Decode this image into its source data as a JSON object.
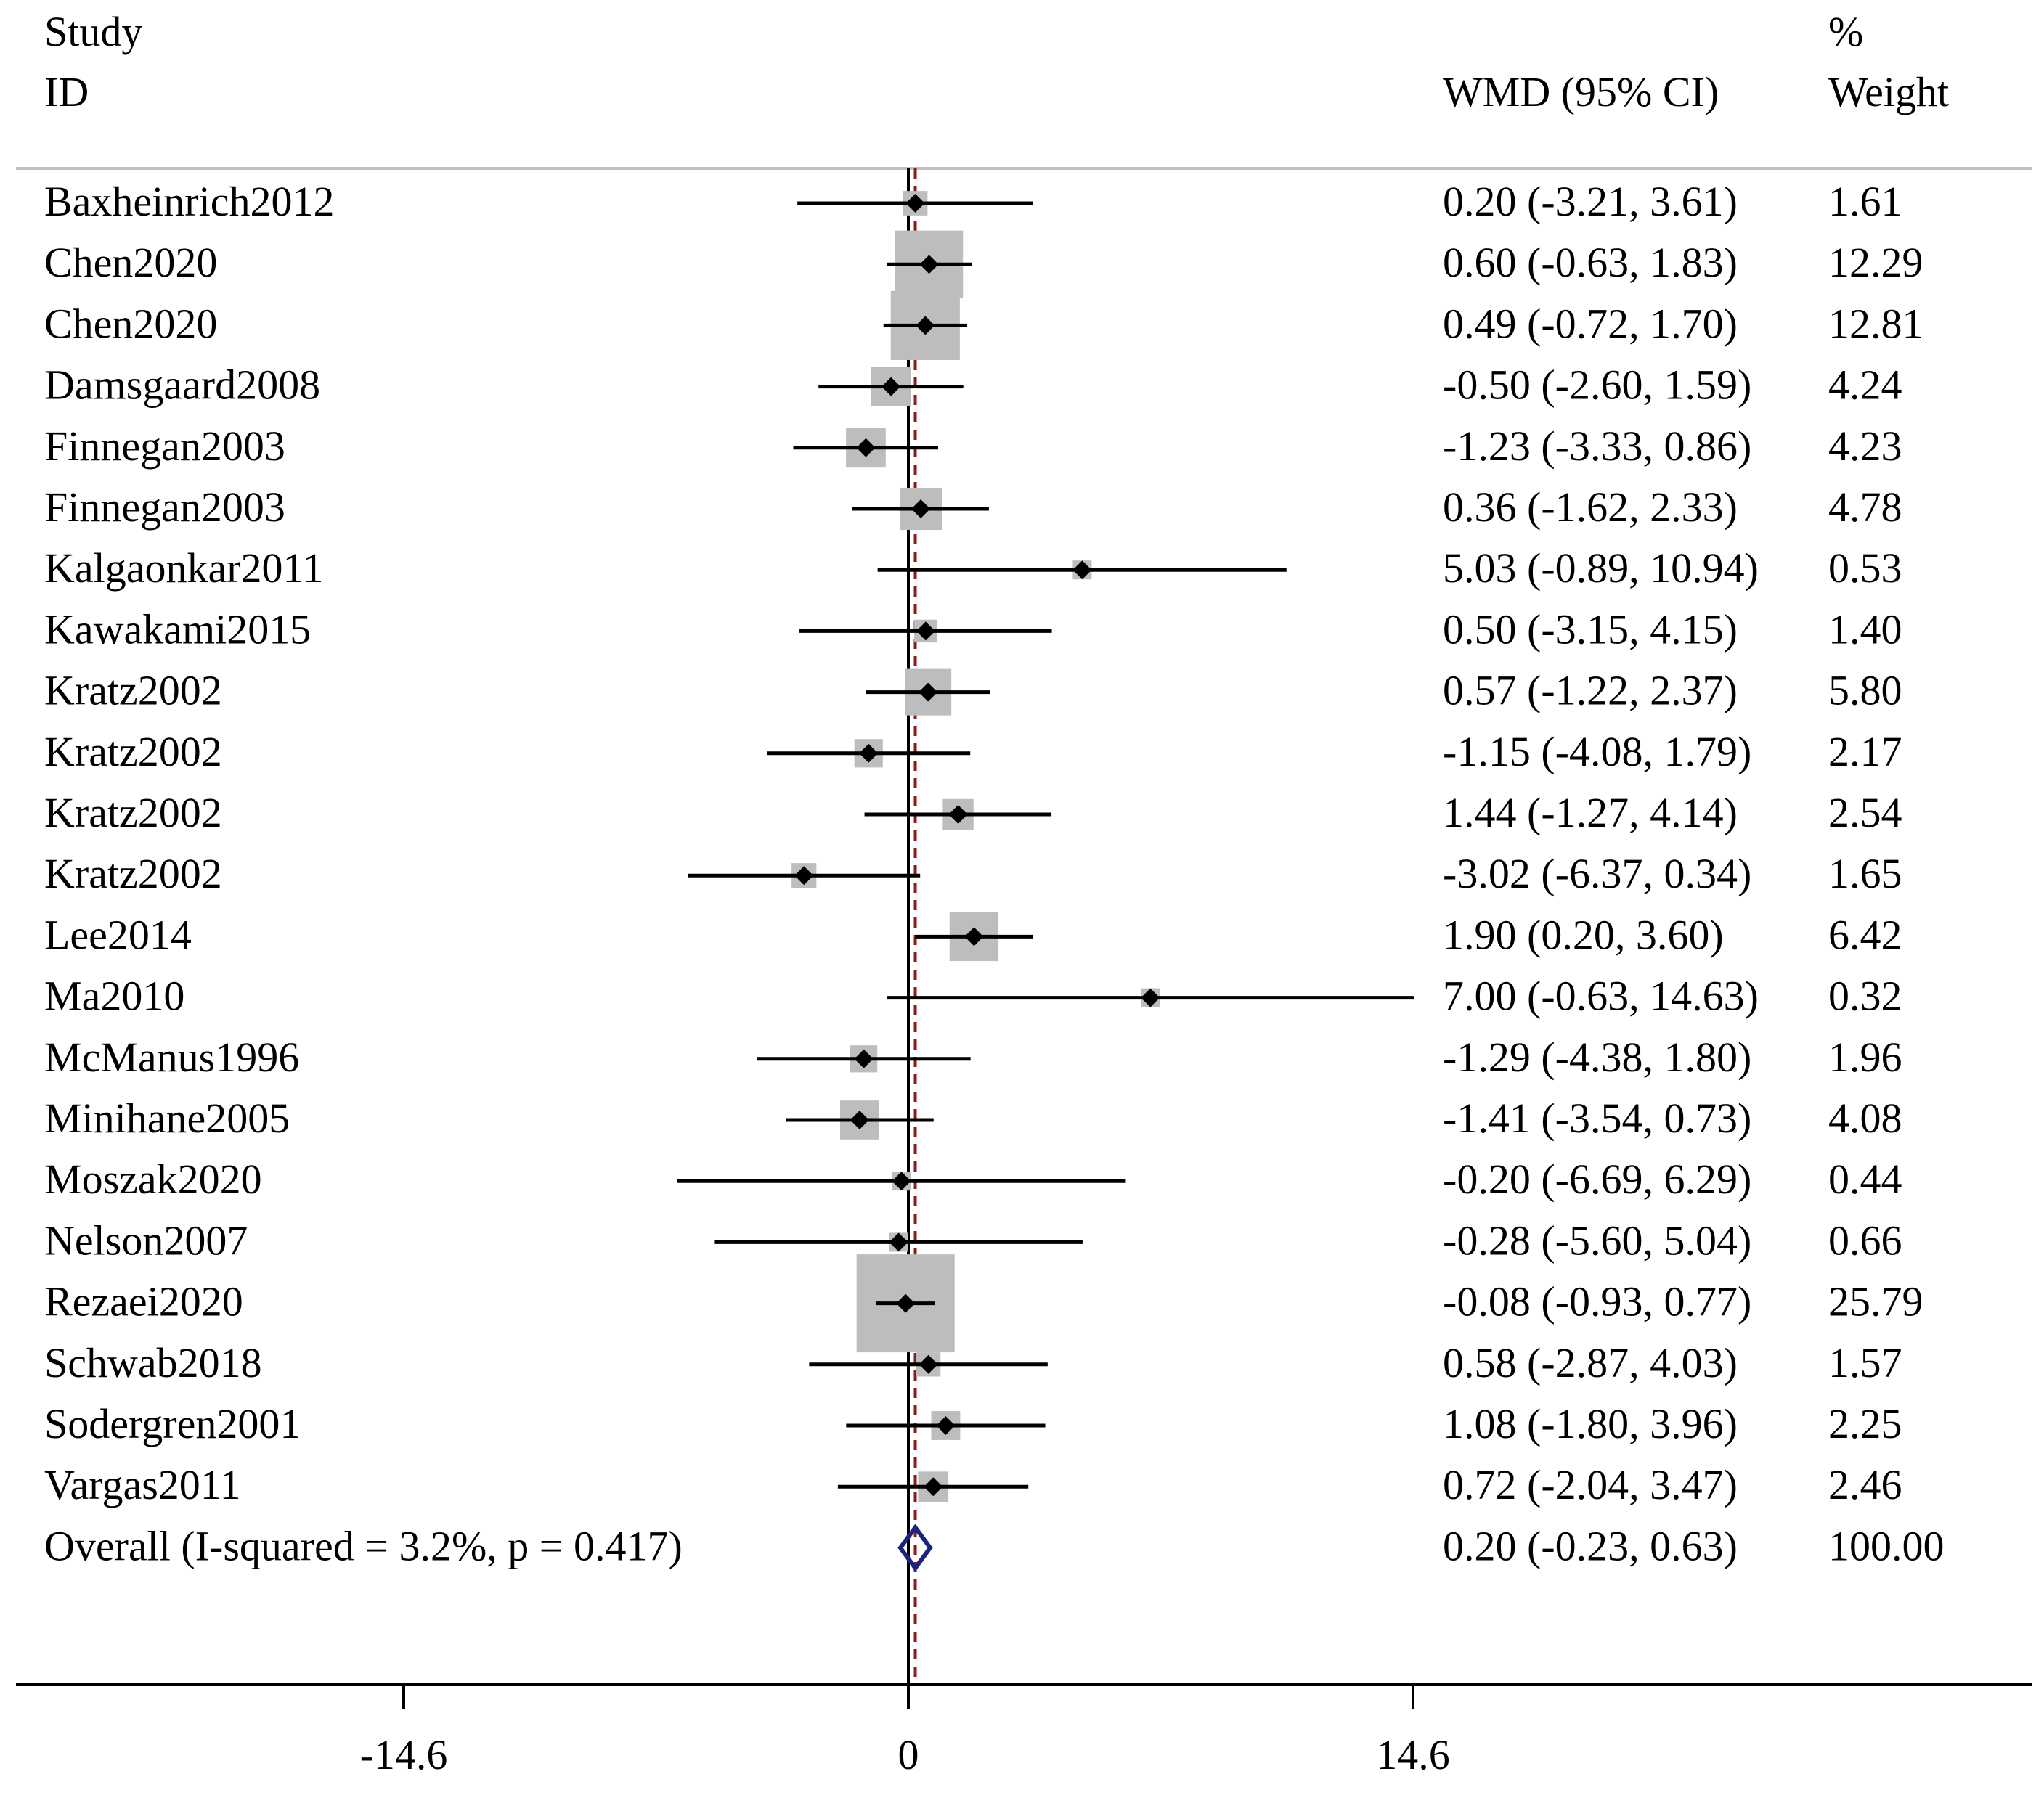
{
  "chart_data": {
    "type": "forest",
    "headers": {
      "study_line1": "Study",
      "study_line2": "ID",
      "effect": "WMD (95% CI)",
      "weight_line1": "%",
      "weight_line2": "Weight"
    },
    "studies": [
      {
        "name": "Baxheinrich2012",
        "wmd": 0.2,
        "lower": -3.21,
        "upper": 3.61,
        "weight": 1.61,
        "ci_text": "0.20 (-3.21, 3.61)",
        "weight_text": "1.61"
      },
      {
        "name": "Chen2020",
        "wmd": 0.6,
        "lower": -0.63,
        "upper": 1.83,
        "weight": 12.29,
        "ci_text": "0.60 (-0.63, 1.83)",
        "weight_text": "12.29"
      },
      {
        "name": "Chen2020",
        "wmd": 0.49,
        "lower": -0.72,
        "upper": 1.7,
        "weight": 12.81,
        "ci_text": "0.49 (-0.72, 1.70)",
        "weight_text": "12.81"
      },
      {
        "name": "Damsgaard2008",
        "wmd": -0.5,
        "lower": -2.6,
        "upper": 1.59,
        "weight": 4.24,
        "ci_text": "-0.50 (-2.60, 1.59)",
        "weight_text": "4.24"
      },
      {
        "name": "Finnegan2003",
        "wmd": -1.23,
        "lower": -3.33,
        "upper": 0.86,
        "weight": 4.23,
        "ci_text": "-1.23 (-3.33, 0.86)",
        "weight_text": "4.23"
      },
      {
        "name": "Finnegan2003",
        "wmd": 0.36,
        "lower": -1.62,
        "upper": 2.33,
        "weight": 4.78,
        "ci_text": "0.36 (-1.62, 2.33)",
        "weight_text": "4.78"
      },
      {
        "name": "Kalgaonkar2011",
        "wmd": 5.03,
        "lower": -0.89,
        "upper": 10.94,
        "weight": 0.53,
        "ci_text": "5.03 (-0.89, 10.94)",
        "weight_text": "0.53"
      },
      {
        "name": "Kawakami2015",
        "wmd": 0.5,
        "lower": -3.15,
        "upper": 4.15,
        "weight": 1.4,
        "ci_text": "0.50 (-3.15, 4.15)",
        "weight_text": "1.40"
      },
      {
        "name": "Kratz2002",
        "wmd": 0.57,
        "lower": -1.22,
        "upper": 2.37,
        "weight": 5.8,
        "ci_text": "0.57 (-1.22, 2.37)",
        "weight_text": "5.80"
      },
      {
        "name": "Kratz2002",
        "wmd": -1.15,
        "lower": -4.08,
        "upper": 1.79,
        "weight": 2.17,
        "ci_text": "-1.15 (-4.08, 1.79)",
        "weight_text": "2.17"
      },
      {
        "name": "Kratz2002",
        "wmd": 1.44,
        "lower": -1.27,
        "upper": 4.14,
        "weight": 2.54,
        "ci_text": "1.44 (-1.27, 4.14)",
        "weight_text": "2.54"
      },
      {
        "name": "Kratz2002",
        "wmd": -3.02,
        "lower": -6.37,
        "upper": 0.34,
        "weight": 1.65,
        "ci_text": "-3.02 (-6.37, 0.34)",
        "weight_text": "1.65"
      },
      {
        "name": "Lee2014",
        "wmd": 1.9,
        "lower": 0.2,
        "upper": 3.6,
        "weight": 6.42,
        "ci_text": "1.90 (0.20, 3.60)",
        "weight_text": "6.42"
      },
      {
        "name": "Ma2010",
        "wmd": 7.0,
        "lower": -0.63,
        "upper": 14.63,
        "weight": 0.32,
        "ci_text": "7.00 (-0.63, 14.63)",
        "weight_text": "0.32"
      },
      {
        "name": "McManus1996",
        "wmd": -1.29,
        "lower": -4.38,
        "upper": 1.8,
        "weight": 1.96,
        "ci_text": "-1.29 (-4.38, 1.80)",
        "weight_text": "1.96"
      },
      {
        "name": "Minihane2005",
        "wmd": -1.41,
        "lower": -3.54,
        "upper": 0.73,
        "weight": 4.08,
        "ci_text": "-1.41 (-3.54, 0.73)",
        "weight_text": "4.08"
      },
      {
        "name": "Moszak2020",
        "wmd": -0.2,
        "lower": -6.69,
        "upper": 6.29,
        "weight": 0.44,
        "ci_text": "-0.20 (-6.69, 6.29)",
        "weight_text": "0.44"
      },
      {
        "name": "Nelson2007",
        "wmd": -0.28,
        "lower": -5.6,
        "upper": 5.04,
        "weight": 0.66,
        "ci_text": "-0.28 (-5.60, 5.04)",
        "weight_text": "0.66"
      },
      {
        "name": "Rezaei2020",
        "wmd": -0.08,
        "lower": -0.93,
        "upper": 0.77,
        "weight": 25.79,
        "ci_text": "-0.08 (-0.93, 0.77)",
        "weight_text": "25.79"
      },
      {
        "name": "Schwab2018",
        "wmd": 0.58,
        "lower": -2.87,
        "upper": 4.03,
        "weight": 1.57,
        "ci_text": "0.58 (-2.87, 4.03)",
        "weight_text": "1.57"
      },
      {
        "name": "Sodergren2001",
        "wmd": 1.08,
        "lower": -1.8,
        "upper": 3.96,
        "weight": 2.25,
        "ci_text": "1.08 (-1.80, 3.96)",
        "weight_text": "2.25"
      },
      {
        "name": "Vargas2011",
        "wmd": 0.72,
        "lower": -2.04,
        "upper": 3.47,
        "weight": 2.46,
        "ci_text": "0.72 (-2.04, 3.47)",
        "weight_text": "2.46"
      }
    ],
    "overall": {
      "label": "Overall  (I-squared = 3.2%, p = 0.417)",
      "wmd": 0.2,
      "lower": -0.23,
      "upper": 0.63,
      "weight": 100.0,
      "ci_text": "0.20 (-0.23, 0.63)",
      "weight_text": "100.00"
    },
    "x_axis": {
      "min": -14.6,
      "max": 14.6,
      "ticks": [
        -14.6,
        0,
        14.6
      ],
      "tick_labels": [
        "-14.6",
        "0",
        "14.6"
      ],
      "null_line": 0
    },
    "colors": {
      "box": "#bdbdbd",
      "line": "#000000",
      "overall_diamond": "#1a237e",
      "overall_line": "#8b1a1a"
    }
  }
}
